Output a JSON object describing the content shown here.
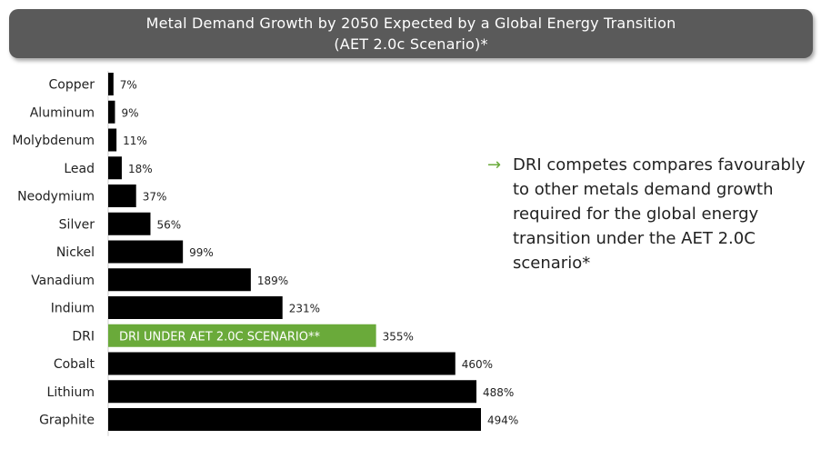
{
  "header": {
    "title_line1": "Metal Demand Growth by 2050 Expected by a Global Energy Transition",
    "title_line2": "(AET 2.0c Scenario)*"
  },
  "callout": {
    "arrow_icon": "arrow-right-icon",
    "text": "DRI competes compares favourably to other metals demand growth required for the global energy transition under the AET 2.0C scenario*"
  },
  "colors": {
    "bar": "#000000",
    "highlight": "#6aaa3a",
    "title_bg": "#5a5a5a"
  },
  "chart_data": {
    "type": "bar",
    "orientation": "horizontal",
    "categories": [
      "Copper",
      "Aluminum",
      "Molybdenum",
      "Lead",
      "Neodymium",
      "Silver",
      "Nickel",
      "Vanadium",
      "Indium",
      "DRI",
      "Cobalt",
      "Lithium",
      "Graphite"
    ],
    "values": [
      7,
      9,
      11,
      18,
      37,
      56,
      99,
      189,
      231,
      355,
      460,
      488,
      494
    ],
    "value_labels": [
      "7%",
      "9%",
      "11%",
      "18%",
      "37%",
      "56%",
      "99%",
      "189%",
      "231%",
      "355%",
      "460%",
      "488%",
      "494%"
    ],
    "highlight_index": 9,
    "highlight_label": "DRI UNDER AET 2.0C SCENARIO**",
    "unit": "%"
  }
}
